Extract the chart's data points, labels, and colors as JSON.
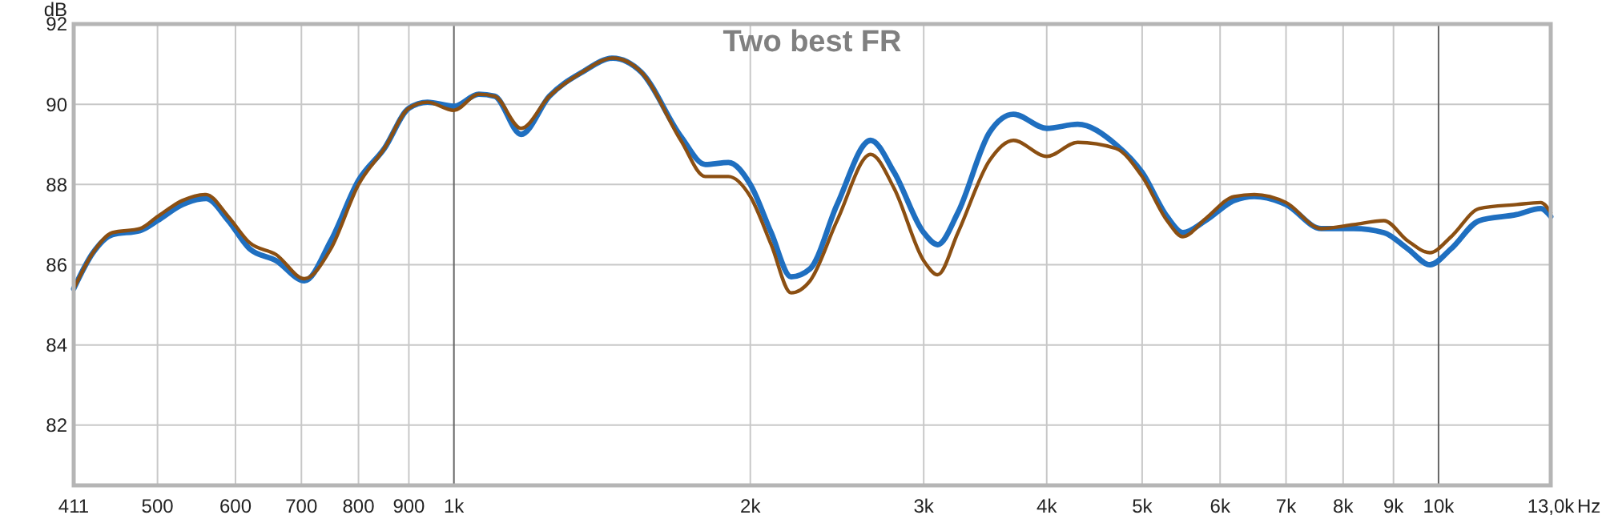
{
  "chart_data": {
    "type": "line",
    "title": "Two best FR",
    "ylabel": "dB",
    "log": "x",
    "grid": true,
    "marker": "none",
    "line_style": "solid",
    "xlim": [
      411,
      13000
    ],
    "ylim": [
      80.5,
      92
    ],
    "xticks": [
      411,
      500,
      600,
      700,
      800,
      900,
      {
        "value": 1000,
        "label": "1k"
      },
      {
        "value": 2000,
        "label": "2k"
      },
      {
        "value": 3000,
        "label": "3k"
      },
      {
        "value": 4000,
        "label": "4k"
      },
      {
        "value": 5000,
        "label": "5k"
      },
      {
        "value": 6000,
        "label": "6k"
      },
      {
        "value": 7000,
        "label": "7k"
      },
      {
        "value": 8000,
        "label": "8k"
      },
      {
        "value": 9000,
        "label": "9k"
      },
      {
        "value": 10000,
        "label": "10k"
      },
      {
        "value": 13000,
        "label": "13,0k"
      }
    ],
    "xlabel": "Hz",
    "yticks": [
      82,
      84,
      86,
      88,
      90,
      92
    ],
    "x": [
      411,
      430,
      450,
      480,
      500,
      530,
      560,
      590,
      620,
      660,
      705,
      750,
      800,
      850,
      900,
      940,
      1000,
      1060,
      1100,
      1170,
      1250,
      1350,
      1450,
      1550,
      1700,
      1800,
      1900,
      2000,
      2100,
      2200,
      2300,
      2450,
      2650,
      2800,
      3000,
      3100,
      3250,
      3500,
      3700,
      4000,
      4300,
      4700,
      5000,
      5300,
      5500,
      5800,
      6200,
      6500,
      7000,
      7600,
      8200,
      8800,
      9300,
      9800,
      10300,
      11000,
      12000,
      12700,
      13000
    ],
    "series": [
      {
        "color": "#1f6fc0",
        "values": [
          85.4,
          86.3,
          86.75,
          86.85,
          87.1,
          87.5,
          87.65,
          87.1,
          86.4,
          86.1,
          85.6,
          86.6,
          88.1,
          88.9,
          89.9,
          90.05,
          89.95,
          90.25,
          90.2,
          89.25,
          90.2,
          90.8,
          91.15,
          90.8,
          89.2,
          88.5,
          88.55,
          88.0,
          86.8,
          85.7,
          85.9,
          87.5,
          89.1,
          88.3,
          86.8,
          86.5,
          87.3,
          89.3,
          89.75,
          89.4,
          89.5,
          89.0,
          88.3,
          87.2,
          86.8,
          87.1,
          87.6,
          87.7,
          87.5,
          86.9,
          86.9,
          86.8,
          86.4,
          86.0,
          86.4,
          87.1,
          87.25,
          87.4,
          87.2
        ]
      },
      {
        "color": "#8b4f12",
        "values": [
          85.4,
          86.3,
          86.8,
          86.9,
          87.2,
          87.6,
          87.75,
          87.2,
          86.55,
          86.25,
          85.65,
          86.4,
          88.0,
          88.9,
          89.9,
          90.05,
          89.85,
          90.25,
          90.2,
          89.4,
          90.2,
          90.8,
          91.15,
          90.8,
          89.1,
          88.2,
          88.2,
          87.7,
          86.5,
          85.3,
          85.6,
          87.1,
          88.75,
          87.9,
          86.1,
          85.75,
          86.8,
          88.6,
          89.1,
          88.7,
          89.05,
          88.9,
          88.2,
          87.1,
          86.7,
          87.15,
          87.7,
          87.75,
          87.55,
          86.9,
          87.0,
          87.1,
          86.6,
          86.3,
          86.7,
          87.4,
          87.5,
          87.55,
          87.3
        ]
      }
    ]
  }
}
